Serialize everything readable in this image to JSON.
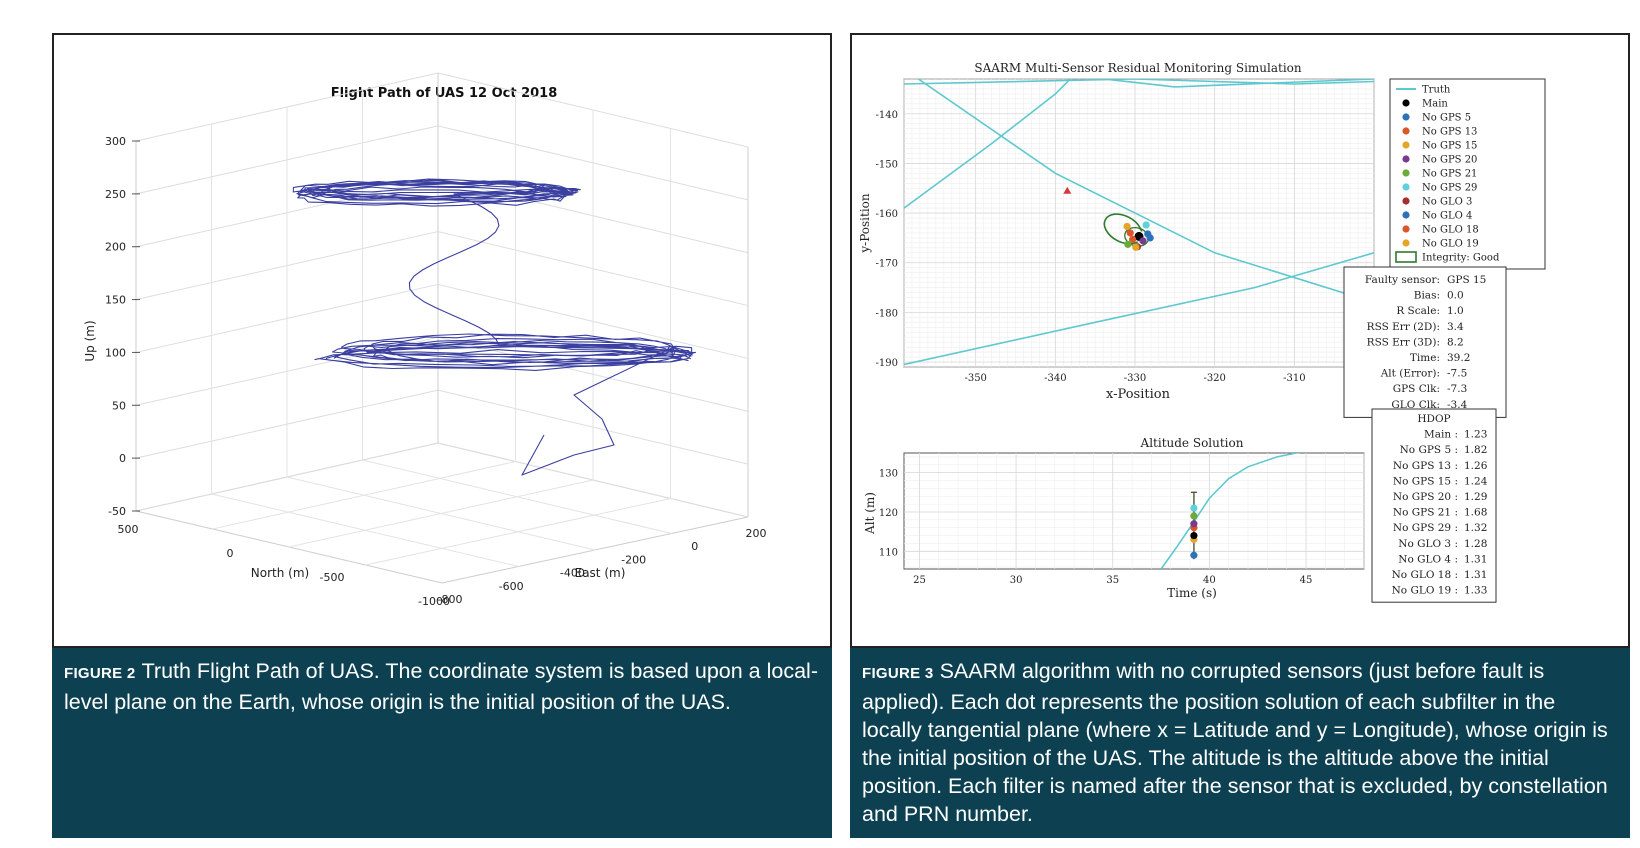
{
  "figure2": {
    "caption_label": "FIGURE 2",
    "caption_text": "Truth Flight Path of UAS. The coordinate system is based upon a local-level plane on the Earth, whose origin is the initial position of the UAS.",
    "chart_data": {
      "type": "line3d",
      "title": "Flight Path of UAS 12 Oct 2018",
      "xlabel": "North (m)",
      "ylabel": "East (m)",
      "zlabel": "Up (m)",
      "north_ticks": [
        "500",
        "0",
        "-500",
        "-1000"
      ],
      "east_ticks": [
        "-800",
        "-600",
        "-400",
        "-200",
        "0",
        "200"
      ],
      "up_ticks": [
        "300",
        "250",
        "200",
        "150",
        "100",
        "50",
        "0",
        "-50"
      ],
      "zlim": [
        -50,
        300
      ],
      "layers_up_m": [
        250,
        100
      ],
      "grid": true
    }
  },
  "figure3": {
    "caption_label": "FIGURE 3",
    "caption_text": "SAARM algorithm with no corrupted sensors (just before fault is applied). Each dot represents the position solution of each subfilter in the locally tangential plane (where x = Latitude and y = Longitude), whose origin is the initial position of the UAS. The altitude is the altitude above the initial position. Each filter is named after the sensor that is excluded, by constellation and PRN number.",
    "chart_data": [
      {
        "type": "scatter",
        "title": "SAARM Multi-Sensor Residual Monitoring Simulation",
        "xlabel": "x-Position",
        "ylabel": "y-Position",
        "xlim": [
          -359,
          -300
        ],
        "ylim": [
          -191,
          -133
        ],
        "x_ticks": [
          "-350",
          "-340",
          "-330",
          "-320",
          "-310"
        ],
        "y_ticks": [
          "-140",
          "-150",
          "-160",
          "-170",
          "-180",
          "-190"
        ],
        "x_tick_values": [
          -350,
          -340,
          -330,
          -320,
          -310
        ],
        "y_tick_values": [
          -140,
          -150,
          -160,
          -170,
          -180,
          -190
        ],
        "series": [
          {
            "name": "Truth",
            "color": "#5ec8cf",
            "type": "line"
          },
          {
            "name": "Main",
            "color": "#000000",
            "x": -329.5,
            "y": -164.7
          },
          {
            "name": "No GPS 5",
            "color": "#2c72b8",
            "x": -328.4,
            "y": -164.2
          },
          {
            "name": "No GPS 13",
            "color": "#d9572b",
            "x": -330.3,
            "y": -165.3
          },
          {
            "name": "No GPS 15",
            "color": "#e3a629",
            "x": -331.0,
            "y": -162.7
          },
          {
            "name": "No GPS 20",
            "color": "#7a3a8e",
            "x": -329.0,
            "y": -165.6
          },
          {
            "name": "No GPS 21",
            "color": "#6aab3c",
            "x": -330.9,
            "y": -166.3
          },
          {
            "name": "No GPS 29",
            "color": "#5fd0dc",
            "x": -328.6,
            "y": -162.4
          },
          {
            "name": "No GLO 3",
            "color": "#a32e2e",
            "x": -329.7,
            "y": -166.8
          },
          {
            "name": "No GLO 4",
            "color": "#2c72b8",
            "x": -328.1,
            "y": -165.0
          },
          {
            "name": "No GLO 18",
            "color": "#d9572b",
            "x": -330.6,
            "y": -164.0
          },
          {
            "name": "No GLO 19",
            "color": "#e3a629",
            "x": -329.9,
            "y": -166.9
          },
          {
            "name": "Integrity: Good",
            "color": "#2e7a2e",
            "type": "ellipse"
          }
        ],
        "legend_position": "top-right",
        "status_labels": [
          "Faulty sensor:",
          "Bias:",
          "R Scale:",
          "RSS Err (2D):",
          "RSS Err (3D):",
          "Time:",
          "Alt (Error):",
          "GPS Clk:",
          "GLO Clk:"
        ],
        "status_values": [
          "GPS 15",
          "0.0",
          "1.0",
          "3.4",
          "8.2",
          "39.2",
          "-7.5",
          "-7.3",
          "-3.4"
        ]
      },
      {
        "type": "line",
        "title": "Altitude Solution",
        "xlabel": "Time (s)",
        "ylabel": "Alt (m)",
        "xlim": [
          24.2,
          48.0
        ],
        "ylim": [
          105.5,
          135
        ],
        "x_ticks": [
          "25",
          "30",
          "35",
          "40",
          "45"
        ],
        "y_ticks": [
          "130",
          "120",
          "110"
        ],
        "x_tick_values": [
          25,
          30,
          35,
          40,
          45
        ],
        "y_tick_values": [
          130,
          120,
          110
        ],
        "truth_series": {
          "name": "Truth",
          "color": "#5ec8cf",
          "x": [
            37.5,
            38.3,
            39.2,
            40.0,
            41.0,
            42.0,
            43.5,
            45.0
          ],
          "y": [
            105.5,
            111.0,
            117.5,
            123.5,
            128.5,
            131.5,
            134.0,
            135.5
          ]
        },
        "error_bar": {
          "time": 39.2,
          "low": 108,
          "high": 125
        },
        "subfilter_altitudes": [
          {
            "color": "#2c72b8",
            "value": 109
          },
          {
            "color": "#e3a629",
            "value": 113
          },
          {
            "color": "#000000",
            "value": 114
          },
          {
            "color": "#d9572b",
            "value": 116
          },
          {
            "color": "#7a3a8e",
            "value": 117
          },
          {
            "color": "#6aab3c",
            "value": 119
          },
          {
            "color": "#5fd0dc",
            "value": 121
          }
        ],
        "hdop_title": "HDOP",
        "hdop_labels": [
          "Main :",
          "No GPS 5 :",
          "No GPS 13 :",
          "No GPS 15 :",
          "No GPS 20 :",
          "No GPS 21 :",
          "No GPS 29 :",
          "No GLO 3 :",
          "No GLO 4 :",
          "No GLO 18 :",
          "No GLO 19 :"
        ],
        "hdop_values": [
          "1.23",
          "1.82",
          "1.26",
          "1.24",
          "1.29",
          "1.68",
          "1.32",
          "1.28",
          "1.31",
          "1.31",
          "1.33"
        ]
      }
    ]
  }
}
